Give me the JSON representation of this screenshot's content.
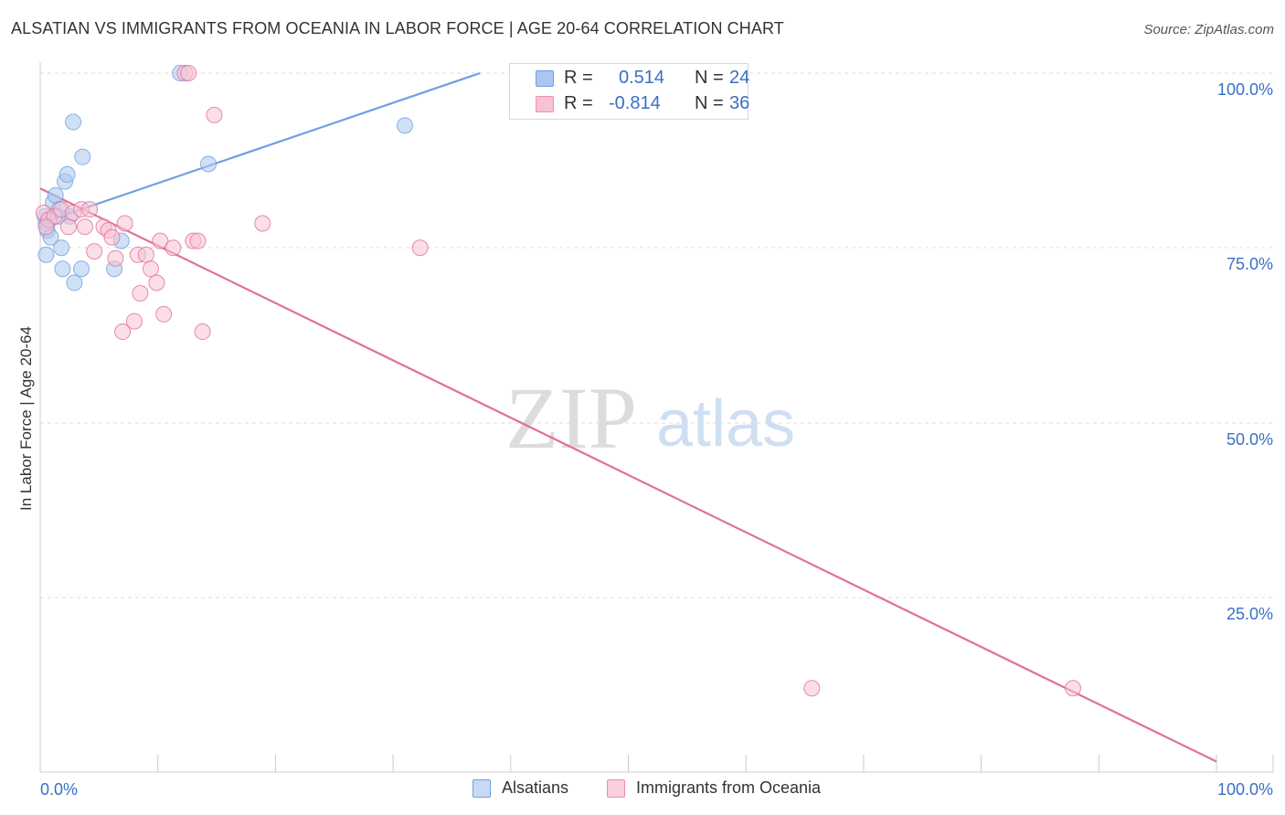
{
  "title": "ALSATIAN VS IMMIGRANTS FROM OCEANIA IN LABOR FORCE | AGE 20-64 CORRELATION CHART",
  "source": "Source: ZipAtlas.com",
  "watermark": {
    "left": "ZIP",
    "right": "atlas"
  },
  "legend": {
    "series": [
      {
        "r_label": "R =",
        "r_value": "0.514",
        "n_label": "N =",
        "n_value": "24",
        "color": "#aac8ef",
        "border": "#6f9fe0"
      },
      {
        "r_label": "R =",
        "r_value": "-0.814",
        "n_label": "N =",
        "n_value": "36",
        "color": "#f7c3d3",
        "border": "#ec8fab"
      }
    ]
  },
  "bottom_legend": [
    {
      "label": "Alsatians",
      "color": "#c6d9f5",
      "border": "#6f9fe0"
    },
    {
      "label": "Immigrants from Oceania",
      "color": "#fad0dc",
      "border": "#ec8fab"
    }
  ],
  "chart_data": {
    "type": "scatter",
    "title": "ALSATIAN VS IMMIGRANTS FROM OCEANIA IN LABOR FORCE | AGE 20-64 CORRELATION CHART",
    "xlabel": "",
    "ylabel": "In Labor Force | Age 20-64",
    "xlim": [
      0,
      100
    ],
    "ylim": [
      0,
      100
    ],
    "x_tick_labels": [
      "0.0%",
      "100.0%"
    ],
    "y_ticks": [
      25,
      50,
      75,
      100
    ],
    "y_tick_labels": [
      "25.0%",
      "50.0%",
      "75.0%",
      "100.0%"
    ],
    "grid": true,
    "series": [
      {
        "name": "Alsatians",
        "color": "#6f9fe0",
        "fill": "#aac8ef",
        "trend": {
          "x": [
            0,
            37.4
          ],
          "y": [
            78.5,
            100
          ]
        },
        "points": [
          {
            "x": 0.5,
            "y": 78.5
          },
          {
            "x": 0.6,
            "y": 77.5
          },
          {
            "x": 0.8,
            "y": 79.0
          },
          {
            "x": 0.5,
            "y": 74.0
          },
          {
            "x": 0.9,
            "y": 76.5
          },
          {
            "x": 1.1,
            "y": 81.5
          },
          {
            "x": 1.3,
            "y": 82.5
          },
          {
            "x": 1.6,
            "y": 80.5
          },
          {
            "x": 1.8,
            "y": 75.0
          },
          {
            "x": 1.9,
            "y": 72.0
          },
          {
            "x": 2.1,
            "y": 84.5
          },
          {
            "x": 2.3,
            "y": 85.5
          },
          {
            "x": 2.5,
            "y": 79.5
          },
          {
            "x": 2.8,
            "y": 93.0
          },
          {
            "x": 2.9,
            "y": 70.0
          },
          {
            "x": 3.5,
            "y": 72.0
          },
          {
            "x": 3.6,
            "y": 88.0
          },
          {
            "x": 6.3,
            "y": 72.0
          },
          {
            "x": 6.9,
            "y": 76.0
          },
          {
            "x": 11.9,
            "y": 100.0
          },
          {
            "x": 14.3,
            "y": 87.0
          },
          {
            "x": 31.0,
            "y": 92.5
          },
          {
            "x": 0.4,
            "y": 79.5
          },
          {
            "x": 1.5,
            "y": 79.5
          }
        ]
      },
      {
        "name": "Immigrants from Oceania",
        "color": "#e0709a",
        "fill": "#f7c3d3",
        "trend": {
          "x": [
            0,
            100
          ],
          "y": [
            83.5,
            1.5
          ]
        },
        "points": [
          {
            "x": 0.3,
            "y": 80.0
          },
          {
            "x": 0.7,
            "y": 79.0
          },
          {
            "x": 1.2,
            "y": 79.5
          },
          {
            "x": 1.8,
            "y": 80.5
          },
          {
            "x": 2.4,
            "y": 78.0
          },
          {
            "x": 2.8,
            "y": 80.0
          },
          {
            "x": 3.5,
            "y": 80.5
          },
          {
            "x": 3.8,
            "y": 78.0
          },
          {
            "x": 4.2,
            "y": 80.5
          },
          {
            "x": 4.6,
            "y": 74.5
          },
          {
            "x": 5.4,
            "y": 78.0
          },
          {
            "x": 5.8,
            "y": 77.5
          },
          {
            "x": 6.1,
            "y": 76.5
          },
          {
            "x": 6.4,
            "y": 73.5
          },
          {
            "x": 7.2,
            "y": 78.5
          },
          {
            "x": 8.0,
            "y": 64.5
          },
          {
            "x": 7.0,
            "y": 63.0
          },
          {
            "x": 8.3,
            "y": 74.0
          },
          {
            "x": 8.5,
            "y": 68.5
          },
          {
            "x": 9.0,
            "y": 74.0
          },
          {
            "x": 9.4,
            "y": 72.0
          },
          {
            "x": 9.9,
            "y": 70.0
          },
          {
            "x": 10.2,
            "y": 76.0
          },
          {
            "x": 10.5,
            "y": 65.5
          },
          {
            "x": 11.3,
            "y": 75.0
          },
          {
            "x": 12.3,
            "y": 100.0
          },
          {
            "x": 12.6,
            "y": 100.0
          },
          {
            "x": 13.0,
            "y": 76.0
          },
          {
            "x": 13.4,
            "y": 76.0
          },
          {
            "x": 13.8,
            "y": 63.0
          },
          {
            "x": 14.8,
            "y": 94.0
          },
          {
            "x": 18.9,
            "y": 78.5
          },
          {
            "x": 32.3,
            "y": 75.0
          },
          {
            "x": 65.6,
            "y": 12.0
          },
          {
            "x": 87.8,
            "y": 12.0
          },
          {
            "x": 0.5,
            "y": 78.0
          }
        ]
      }
    ]
  }
}
